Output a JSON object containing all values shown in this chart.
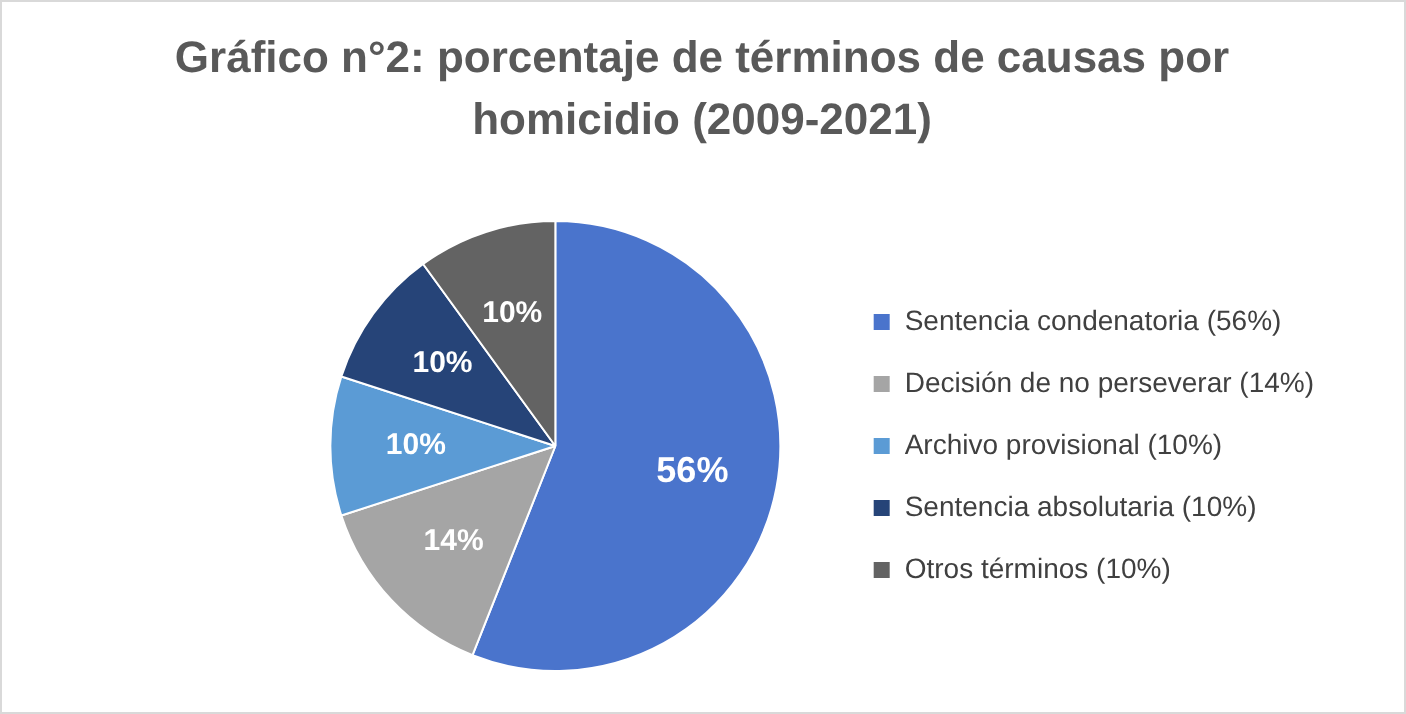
{
  "chart_data": {
    "type": "pie",
    "title": "Gráfico n°2: porcentaje de términos de causas por homicidio  (2009-2021)",
    "categories": [
      "Sentencia condenatoria (56%)",
      "Decisión de no perseverar (14%)",
      "Archivo provisional (10%)",
      "Sentencia absolutaria (10%)",
      "Otros términos (10%)"
    ],
    "values": [
      56,
      14,
      10,
      10,
      10
    ],
    "colors": [
      "#4a74cc",
      "#a5a5a5",
      "#5b9bd5",
      "#264478",
      "#636363"
    ],
    "value_labels": [
      "56%",
      "14%",
      "10%",
      "10%",
      "10%"
    ],
    "legend": "right"
  }
}
